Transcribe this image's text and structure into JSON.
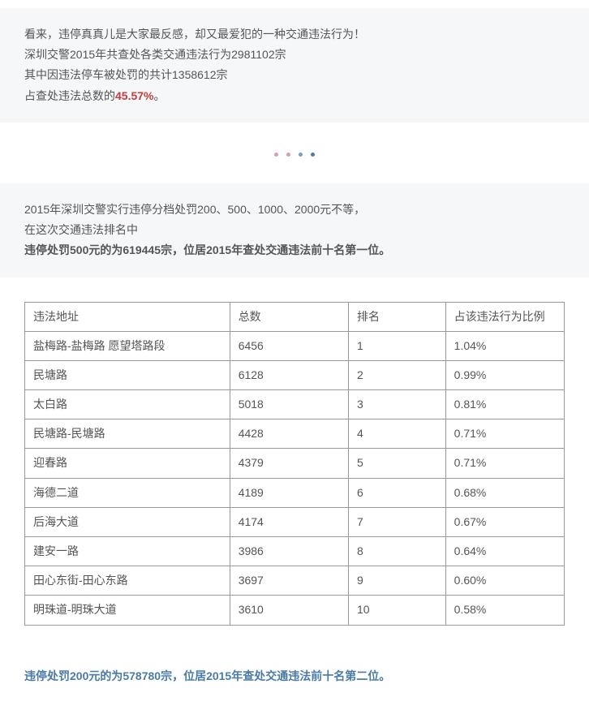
{
  "intro": {
    "line1": "看来，违停真真儿是大家最反感，却又最爱犯的一种交通违法行为！",
    "line2": "深圳交警2015年共查处各类交通违法行为2981102宗",
    "line3": "其中因违法停车被处罚的共计1358612宗",
    "line4_prefix": "占查处违法总数的",
    "line4_highlight": "45.57%",
    "line4_suffix": "。"
  },
  "divider": {
    "dot_colors": [
      "#d9a0a8",
      "#d9a0a8",
      "#7a9cc6",
      "#5578a8"
    ]
  },
  "section2": {
    "line1": "2015年深圳交警实行违停分档处罚200、500、1000、2000元不等，",
    "line2": "在这次交通违法排名中",
    "line3_highlight": "违停处罚500元的为619445宗，位居2015年查处交通违法前十名第一位。"
  },
  "table": {
    "headers": {
      "address": "违法地址",
      "total": "总数",
      "rank": "排名",
      "ratio": "占该违法行为比例"
    },
    "rows": [
      {
        "address": "盐梅路-盐梅路 愿望塔路段",
        "total": "6456",
        "rank": "1",
        "ratio": "1.04%"
      },
      {
        "address": "民塘路",
        "total": "6128",
        "rank": "2",
        "ratio": "0.99%"
      },
      {
        "address": "太白路",
        "total": "5018",
        "rank": "3",
        "ratio": "0.81%"
      },
      {
        "address": "民塘路-民塘路",
        "total": "4428",
        "rank": "4",
        "ratio": "0.71%"
      },
      {
        "address": "迎春路",
        "total": "4379",
        "rank": "5",
        "ratio": "0.71%"
      },
      {
        "address": "海德二道",
        "total": "4189",
        "rank": "6",
        "ratio": "0.68%"
      },
      {
        "address": "后海大道",
        "total": "4174",
        "rank": "7",
        "ratio": "0.67%"
      },
      {
        "address": "建安一路",
        "total": "3986",
        "rank": "8",
        "ratio": "0.64%"
      },
      {
        "address": "田心东街-田心东路",
        "total": "3697",
        "rank": "9",
        "ratio": "0.60%"
      },
      {
        "address": "明珠道-明珠大道",
        "total": "3610",
        "rank": "10",
        "ratio": "0.58%"
      }
    ],
    "styling": {
      "border_color": "#999999",
      "text_color": "#555555",
      "fontsize": 14
    }
  },
  "bottom_statement": {
    "text": "违停处罚200元的为578780宗，位居2015年查处交通违法前十名第二位。"
  },
  "colors": {
    "section_bg": "#f5f7f9",
    "body_bg": "#ffffff",
    "text": "#555555",
    "highlight_red": "#c43d3d",
    "highlight_blue": "#4a7ba6"
  }
}
